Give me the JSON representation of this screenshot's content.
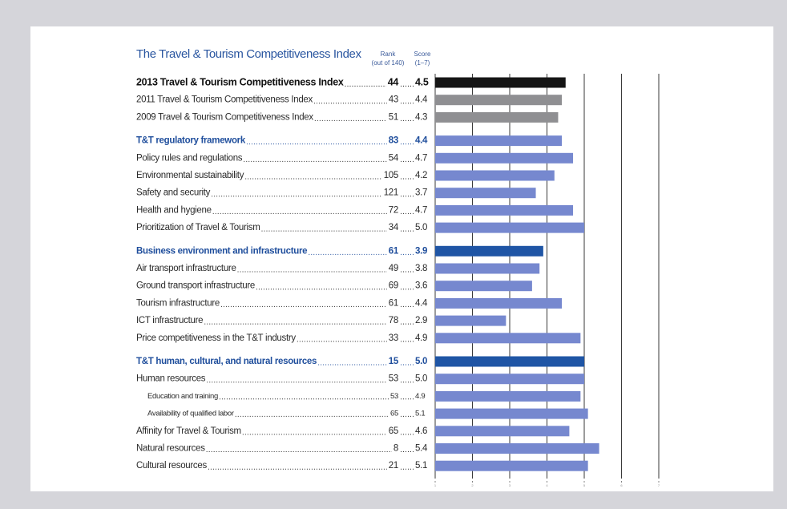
{
  "chart_data": {
    "type": "bar",
    "title": "The Travel & Tourism Competitiveness Index",
    "rank_header": [
      "Rank",
      "(out of 140)"
    ],
    "score_header": [
      "Score",
      "(1–7)"
    ],
    "xlim": [
      1,
      7
    ],
    "xticks": [
      1,
      2,
      3,
      4,
      5,
      6,
      7
    ],
    "grid": true,
    "groups": [
      {
        "rows": [
          {
            "label": "2013 Travel & Tourism Competitiveness Index",
            "rank": 44,
            "score": 4.5,
            "color": "#151515"
          },
          {
            "label": "2011 Travel & Tourism Competitiveness Index",
            "rank": 43,
            "score": 4.4,
            "color": "#8f8f92"
          },
          {
            "label": "2009 Travel & Tourism Competitiveness Index",
            "rank": 51,
            "score": 4.3,
            "color": "#8f8f92"
          }
        ]
      },
      {
        "rows": [
          {
            "label": "T&T regulatory framework",
            "rank": 83,
            "score": 4.4,
            "color": "#7688cf"
          },
          {
            "label": "Policy rules and regulations",
            "rank": 54,
            "score": 4.7,
            "color": "#7688cf"
          },
          {
            "label": "Environmental sustainability",
            "rank": 105,
            "score": 4.2,
            "color": "#7688cf"
          },
          {
            "label": "Safety and security",
            "rank": 121,
            "score": 3.7,
            "color": "#7688cf"
          },
          {
            "label": "Health and hygiene",
            "rank": 72,
            "score": 4.7,
            "color": "#7688cf"
          },
          {
            "label": "Prioritization of Travel & Tourism",
            "rank": 34,
            "score": 5.0,
            "score_label": "5.0",
            "color": "#7688cf"
          }
        ]
      },
      {
        "rows": [
          {
            "label": "Business environment and infrastructure",
            "rank": 61,
            "score": 3.9,
            "color": "#1f55a5"
          },
          {
            "label": "Air transport infrastructure",
            "rank": 49,
            "score": 3.8,
            "color": "#7688cf"
          },
          {
            "label": "Ground transport infrastructure",
            "rank": 69,
            "score": 3.6,
            "color": "#7688cf"
          },
          {
            "label": "Tourism infrastructure",
            "rank": 61,
            "score": 4.4,
            "color": "#7688cf"
          },
          {
            "label": "ICT infrastructure",
            "rank": 78,
            "score": 2.9,
            "color": "#7688cf"
          },
          {
            "label": "Price competitiveness in the T&T industry",
            "rank": 33,
            "score": 4.9,
            "color": "#7688cf"
          }
        ]
      },
      {
        "rows": [
          {
            "label": "T&T human, cultural, and natural resources",
            "rank": 15,
            "score": 5.0,
            "score_label": "5.0",
            "color": "#1f55a5"
          },
          {
            "label": "Human resources",
            "rank": 53,
            "score": 5.0,
            "score_label": "5.0",
            "color": "#7688cf"
          },
          {
            "label": "Education and training",
            "rank": 53,
            "score": 4.9,
            "color": "#7688cf",
            "indent": 1
          },
          {
            "label": "Availability of qualified labor",
            "rank": 65,
            "score": 5.1,
            "color": "#7688cf",
            "indent": 1
          },
          {
            "label": "Affinity for Travel & Tourism",
            "rank": 65,
            "score": 4.6,
            "color": "#7688cf"
          },
          {
            "label": "Natural resources",
            "rank": 8,
            "score": 5.4,
            "color": "#7688cf"
          },
          {
            "label": "Cultural resources",
            "rank": 21,
            "score": 5.1,
            "color": "#7688cf"
          }
        ]
      }
    ]
  }
}
